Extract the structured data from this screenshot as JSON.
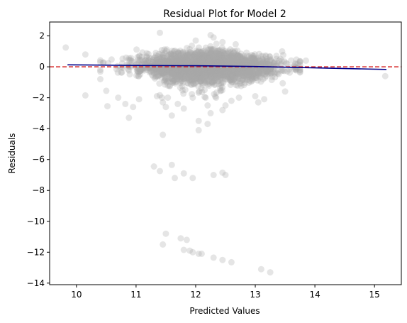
{
  "chart_data": {
    "type": "scatter",
    "title": "Residual Plot for Model 2",
    "xlabel": "Predicted Values",
    "ylabel": "Residuals",
    "xlim": [
      9.55,
      15.45
    ],
    "ylim": [
      -14.1,
      2.9
    ],
    "xticks": [
      "10",
      "11",
      "12",
      "13",
      "14",
      "15"
    ],
    "yticks": [
      "2",
      "0",
      "−2",
      "−4",
      "−6",
      "−8",
      "−10",
      "−12",
      "−14"
    ],
    "grid": false,
    "colors": {
      "points": "#a9a9a9",
      "trend": "#00008b",
      "zero_line": "#d62728"
    },
    "zero_line": {
      "y": 0,
      "style": "dashed"
    },
    "trend_line": [
      [
        9.85,
        0.13
      ],
      [
        11.0,
        0.09
      ],
      [
        12.0,
        0.07
      ],
      [
        13.0,
        0.02
      ],
      [
        14.0,
        -0.07
      ],
      [
        15.2,
        -0.17
      ]
    ],
    "cluster": {
      "x_center": 12.2,
      "x_spread": 0.55,
      "y_spread": 0.5
    },
    "points": [
      [
        9.82,
        1.25
      ],
      [
        10.15,
        0.8
      ],
      [
        10.15,
        -1.85
      ],
      [
        10.4,
        -0.8
      ],
      [
        10.5,
        -1.55
      ],
      [
        10.52,
        -2.55
      ],
      [
        10.7,
        -2.0
      ],
      [
        10.82,
        -2.4
      ],
      [
        10.88,
        -3.3
      ],
      [
        10.95,
        -2.6
      ],
      [
        11.05,
        -2.1
      ],
      [
        11.35,
        -1.9
      ],
      [
        11.45,
        -2.3
      ],
      [
        11.5,
        -2.6
      ],
      [
        11.7,
        -2.4
      ],
      [
        11.95,
        -2.0
      ],
      [
        12.2,
        -2.5
      ],
      [
        12.25,
        -3.0
      ],
      [
        12.45,
        -2.8
      ],
      [
        12.6,
        -2.2
      ],
      [
        13.0,
        -1.9
      ],
      [
        13.05,
        -2.3
      ],
      [
        13.15,
        -2.1
      ],
      [
        13.5,
        -1.6
      ],
      [
        13.7,
        -0.1
      ],
      [
        13.85,
        0.4
      ],
      [
        13.45,
        1.0
      ],
      [
        11.4,
        2.2
      ],
      [
        12.25,
        2.05
      ],
      [
        12.3,
        1.9
      ],
      [
        12.0,
        1.7
      ],
      [
        12.45,
        1.6
      ],
      [
        12.15,
        -1.95
      ],
      [
        11.8,
        -2.7
      ],
      [
        11.6,
        -3.15
      ],
      [
        12.5,
        -2.5
      ],
      [
        11.45,
        -4.4
      ],
      [
        12.05,
        -3.5
      ],
      [
        12.2,
        -3.7
      ],
      [
        12.05,
        -4.1
      ],
      [
        11.3,
        -6.45
      ],
      [
        11.4,
        -6.75
      ],
      [
        11.6,
        -6.35
      ],
      [
        11.65,
        -7.2
      ],
      [
        11.8,
        -6.9
      ],
      [
        11.95,
        -7.2
      ],
      [
        12.3,
        -7.0
      ],
      [
        12.45,
        -6.85
      ],
      [
        12.5,
        -7.0
      ],
      [
        11.45,
        -11.5
      ],
      [
        11.5,
        -10.8
      ],
      [
        11.75,
        -11.1
      ],
      [
        11.85,
        -11.2
      ],
      [
        11.8,
        -11.85
      ],
      [
        11.9,
        -11.9
      ],
      [
        11.95,
        -12.0
      ],
      [
        12.05,
        -12.1
      ],
      [
        12.1,
        -12.1
      ],
      [
        12.3,
        -12.35
      ],
      [
        12.45,
        -12.5
      ],
      [
        12.6,
        -12.65
      ],
      [
        13.1,
        -13.1
      ],
      [
        13.25,
        -13.3
      ],
      [
        15.18,
        -0.6
      ]
    ]
  }
}
